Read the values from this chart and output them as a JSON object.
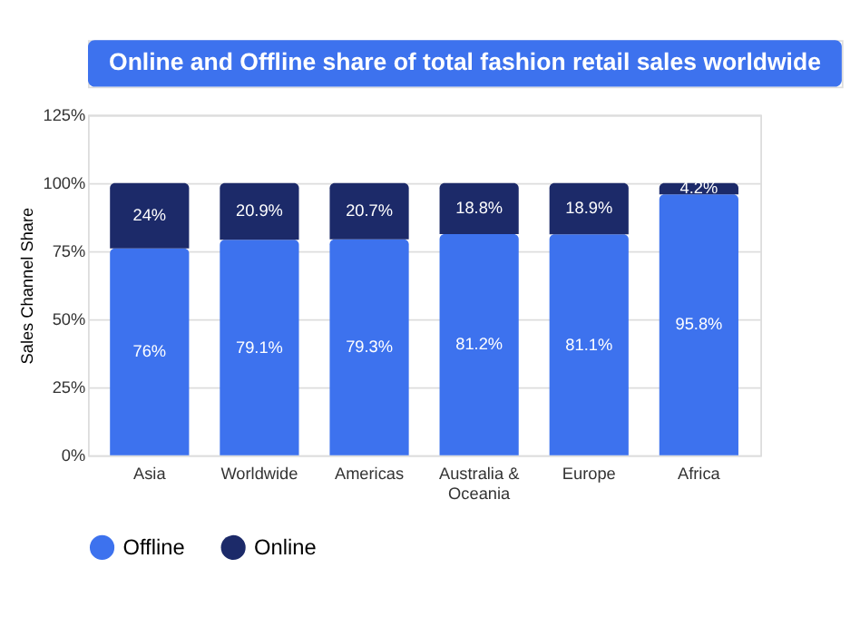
{
  "chart_data": {
    "type": "bar",
    "title": "Online and Offline share of total fashion retail sales worldwide",
    "ylabel": "Sales Channel Share",
    "categories": [
      "Asia",
      "Worldwide",
      "Americas",
      "Australia & Oceania",
      "Europe",
      "Africa"
    ],
    "stacked": true,
    "series": [
      {
        "name": "Offline",
        "color": "#3d72ee",
        "values": [
          76,
          79.1,
          79.3,
          81.2,
          81.1,
          95.8
        ],
        "value_labels": [
          "76%",
          "79.1%",
          "79.3%",
          "81.2%",
          "81.1%",
          "95.8%"
        ]
      },
      {
        "name": "Online",
        "color": "#1c2a69",
        "values": [
          24,
          20.9,
          20.7,
          18.8,
          18.9,
          4.2
        ],
        "value_labels": [
          "24%",
          "20.9%",
          "20.7%",
          "18.8%",
          "18.9%",
          "4.2%"
        ]
      }
    ],
    "ylim": [
      0,
      125
    ],
    "yticks": [
      {
        "value": 0,
        "label": "0%"
      },
      {
        "value": 25,
        "label": "25%"
      },
      {
        "value": 50,
        "label": "50%"
      },
      {
        "value": 75,
        "label": "75%"
      },
      {
        "value": 100,
        "label": "100%"
      },
      {
        "value": 125,
        "label": "125%"
      }
    ],
    "grid": "y",
    "legend": "bottom"
  }
}
